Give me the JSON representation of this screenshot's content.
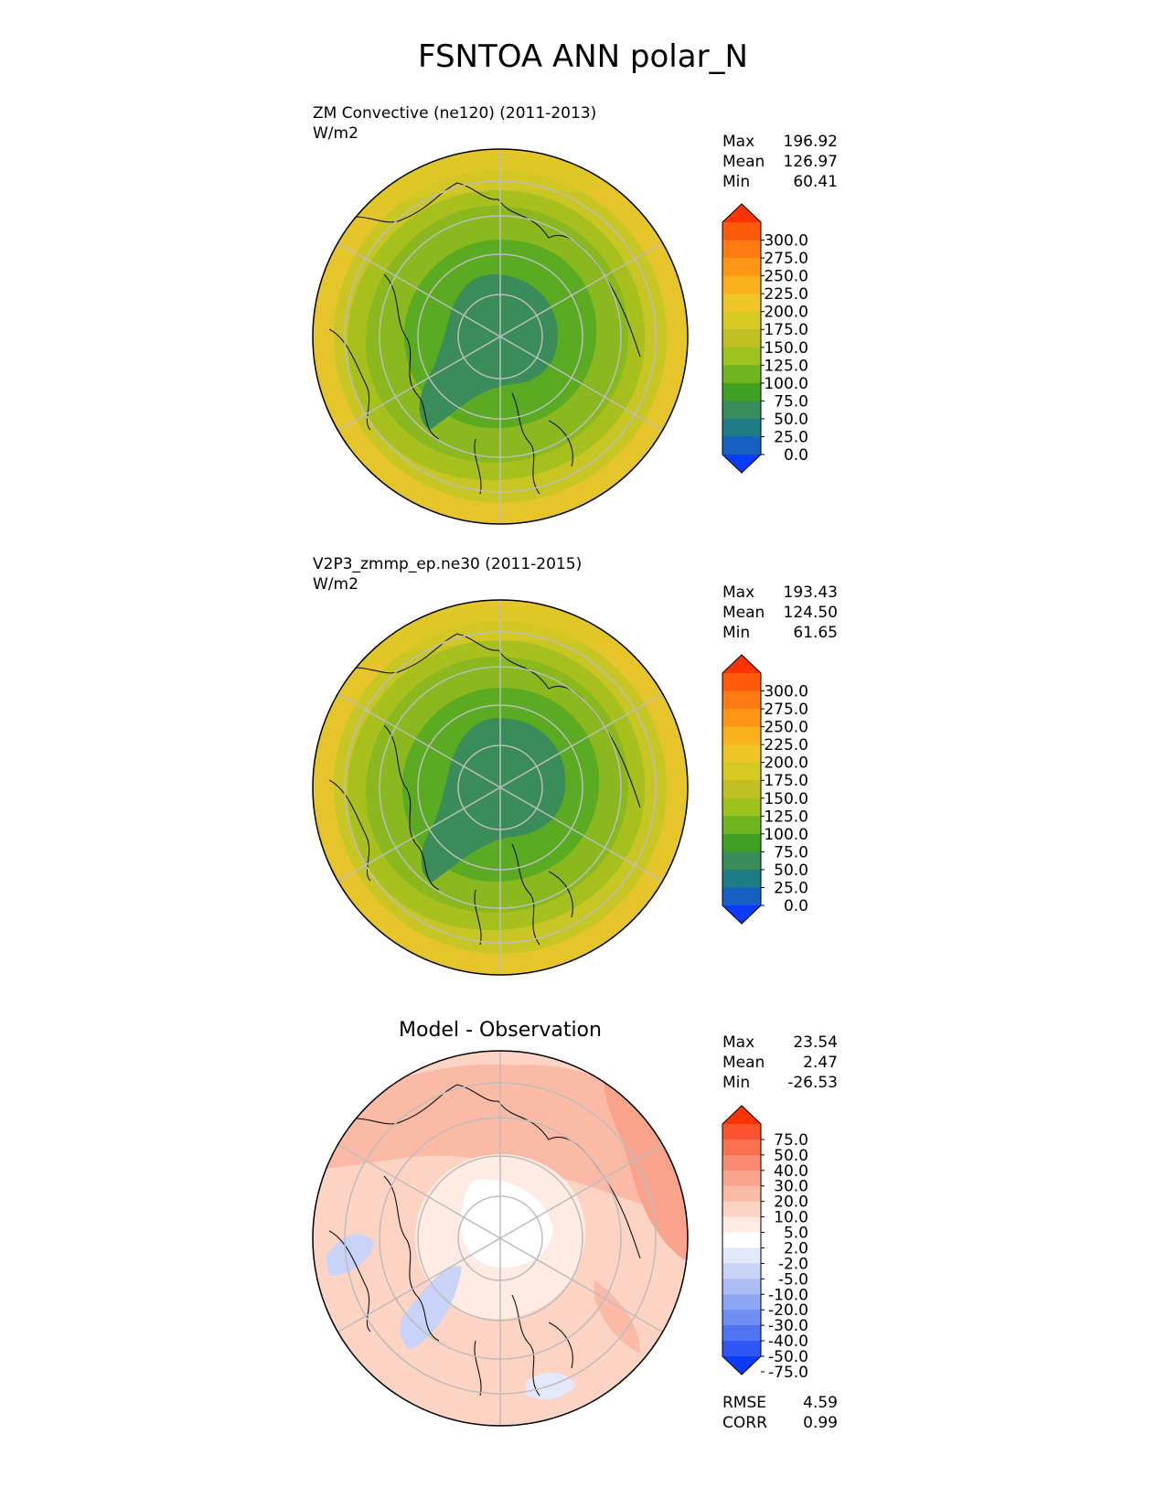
{
  "figure": {
    "title": "FSNTOA ANN polar_N"
  },
  "panels": [
    {
      "id": "test",
      "title": "ZM Convective (ne120) (2011-2013)",
      "units": "W/m2",
      "stats": {
        "max_label": "Max",
        "max": "196.92",
        "mean_label": "Mean",
        "mean": "126.97",
        "min_label": "Min",
        "min": "60.41"
      },
      "colorbar": {
        "tick_labels": [
          "300.0",
          "275.0",
          "250.0",
          "225.0",
          "200.0",
          "175.0",
          "150.0",
          "125.0",
          "100.0",
          "75.0",
          "50.0",
          "25.0",
          "0.0"
        ],
        "colors": [
          "#ff3300",
          "#ff5a0a",
          "#ff7a10",
          "#ff9616",
          "#fbb11a",
          "#efc724",
          "#d6ca22",
          "#c0c022",
          "#9ec21e",
          "#70b420",
          "#40a024",
          "#3a8c5a",
          "#1d7c86",
          "#1560c0",
          "#0a3cff"
        ]
      }
    },
    {
      "id": "reference",
      "title": "V2P3_zmmp_ep.ne30 (2011-2015)",
      "units": "W/m2",
      "stats": {
        "max_label": "Max",
        "max": "193.43",
        "mean_label": "Mean",
        "mean": "124.50",
        "min_label": "Min",
        "min": "61.65"
      },
      "colorbar": {
        "tick_labels": [
          "300.0",
          "275.0",
          "250.0",
          "225.0",
          "200.0",
          "175.0",
          "150.0",
          "125.0",
          "100.0",
          "75.0",
          "50.0",
          "25.0",
          "0.0"
        ],
        "colors": [
          "#ff3300",
          "#ff5a0a",
          "#ff7a10",
          "#ff9616",
          "#fbb11a",
          "#efc724",
          "#d6ca22",
          "#c0c022",
          "#9ec21e",
          "#70b420",
          "#40a024",
          "#3a8c5a",
          "#1d7c86",
          "#1560c0",
          "#0a3cff"
        ]
      }
    },
    {
      "id": "diff",
      "title": "Model - Observation",
      "stats": {
        "max_label": "Max",
        "max": "23.54",
        "mean_label": "Mean",
        "mean": "2.47",
        "min_label": "Min",
        "min": "-26.53"
      },
      "colorbar": {
        "tick_labels": [
          "75.0",
          "50.0",
          "40.0",
          "30.0",
          "20.0",
          "10.0",
          "5.0",
          "2.0",
          "-2.0",
          "-5.0",
          "-10.0",
          "-20.0",
          "-30.0",
          "-40.0",
          "-50.0",
          "-75.0"
        ],
        "colors": [
          "#ff3300",
          "#fd5430",
          "#fa7150",
          "#f98c70",
          "#f9a38c",
          "#fbbaa6",
          "#fdd3c4",
          "#feebe3",
          "#ffffff",
          "#e4e8fb",
          "#c9d3f8",
          "#acbdf6",
          "#8ea5f4",
          "#708ef3",
          "#4f74f4",
          "#3057f5",
          "#0a3cff"
        ]
      },
      "metrics": {
        "rmse_label": "RMSE",
        "rmse": "4.59",
        "corr_label": "CORR",
        "corr": "0.99"
      }
    }
  ],
  "chart_data": [
    {
      "type": "heatmap",
      "projection": "north-polar-stereographic",
      "title": "ZM Convective (ne120) (2011-2013)",
      "units": "W/m2",
      "levels": [
        0,
        25,
        50,
        75,
        100,
        125,
        150,
        175,
        200,
        225,
        250,
        275,
        300
      ],
      "extend": "both",
      "max": 196.92,
      "mean": 126.97,
      "min": 60.41,
      "grid": true
    },
    {
      "type": "heatmap",
      "projection": "north-polar-stereographic",
      "title": "V2P3_zmmp_ep.ne30 (2011-2015)",
      "units": "W/m2",
      "levels": [
        0,
        25,
        50,
        75,
        100,
        125,
        150,
        175,
        200,
        225,
        250,
        275,
        300
      ],
      "extend": "both",
      "max": 193.43,
      "mean": 124.5,
      "min": 61.65,
      "grid": true
    },
    {
      "type": "heatmap",
      "projection": "north-polar-stereographic",
      "title": "Model - Observation",
      "levels": [
        -75,
        -50,
        -40,
        -30,
        -20,
        -10,
        -5,
        -2,
        2,
        5,
        10,
        20,
        30,
        40,
        50,
        75
      ],
      "extend": "both",
      "max": 23.54,
      "mean": 2.47,
      "min": -26.53,
      "rmse": 4.59,
      "corr": 0.99,
      "grid": true
    }
  ]
}
